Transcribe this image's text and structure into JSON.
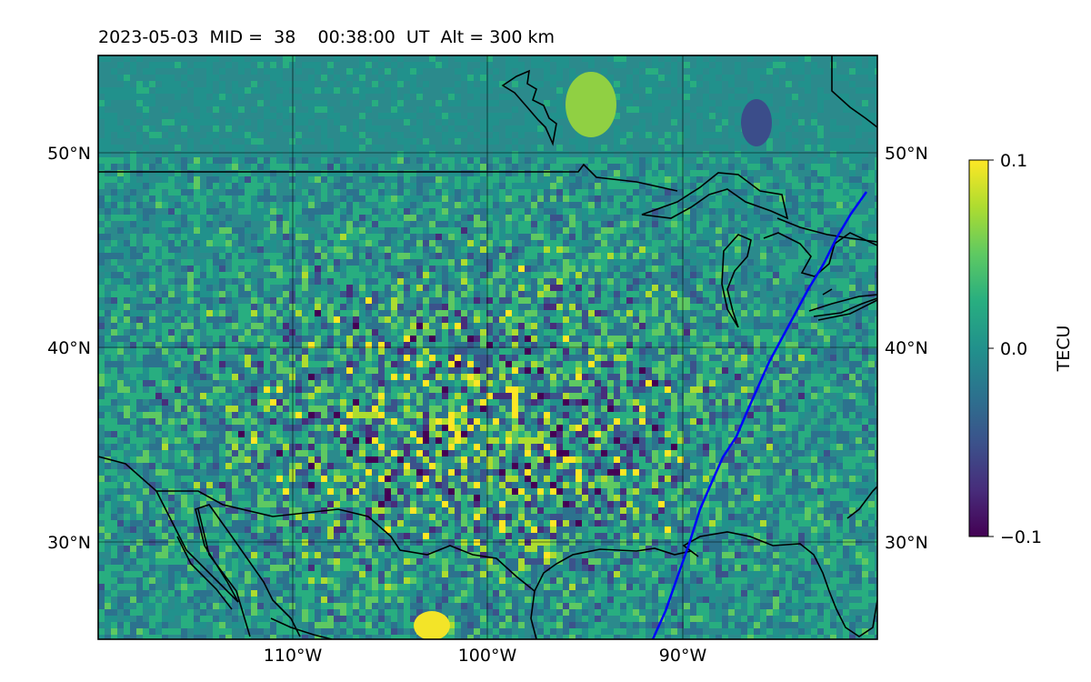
{
  "map": {
    "title": "2023-05-03  MID =  38    00:38:00  UT  Alt = 300 km",
    "lon_range": [
      -120,
      -80
    ],
    "lat_range": [
      25,
      55
    ],
    "lon_ticks": [
      {
        "value": -110,
        "label": "110°W"
      },
      {
        "value": -100,
        "label": "100°W"
      },
      {
        "value": -90,
        "label": "90°W"
      }
    ],
    "lat_ticks": [
      {
        "value": 50,
        "label": "50°N"
      },
      {
        "value": 40,
        "label": "40°N"
      },
      {
        "value": 30,
        "label": "30°N"
      }
    ],
    "satellite_track_color": "#0000ff",
    "coastline_color": "#000000"
  },
  "colorbar": {
    "label": "TECU",
    "min": -0.1,
    "max": 0.1,
    "ticks": [
      {
        "value": 0.1,
        "label": "0.1"
      },
      {
        "value": 0.0,
        "label": "0.0"
      },
      {
        "value": -0.1,
        "label": "−0.1"
      }
    ],
    "colormap": "viridis"
  }
}
